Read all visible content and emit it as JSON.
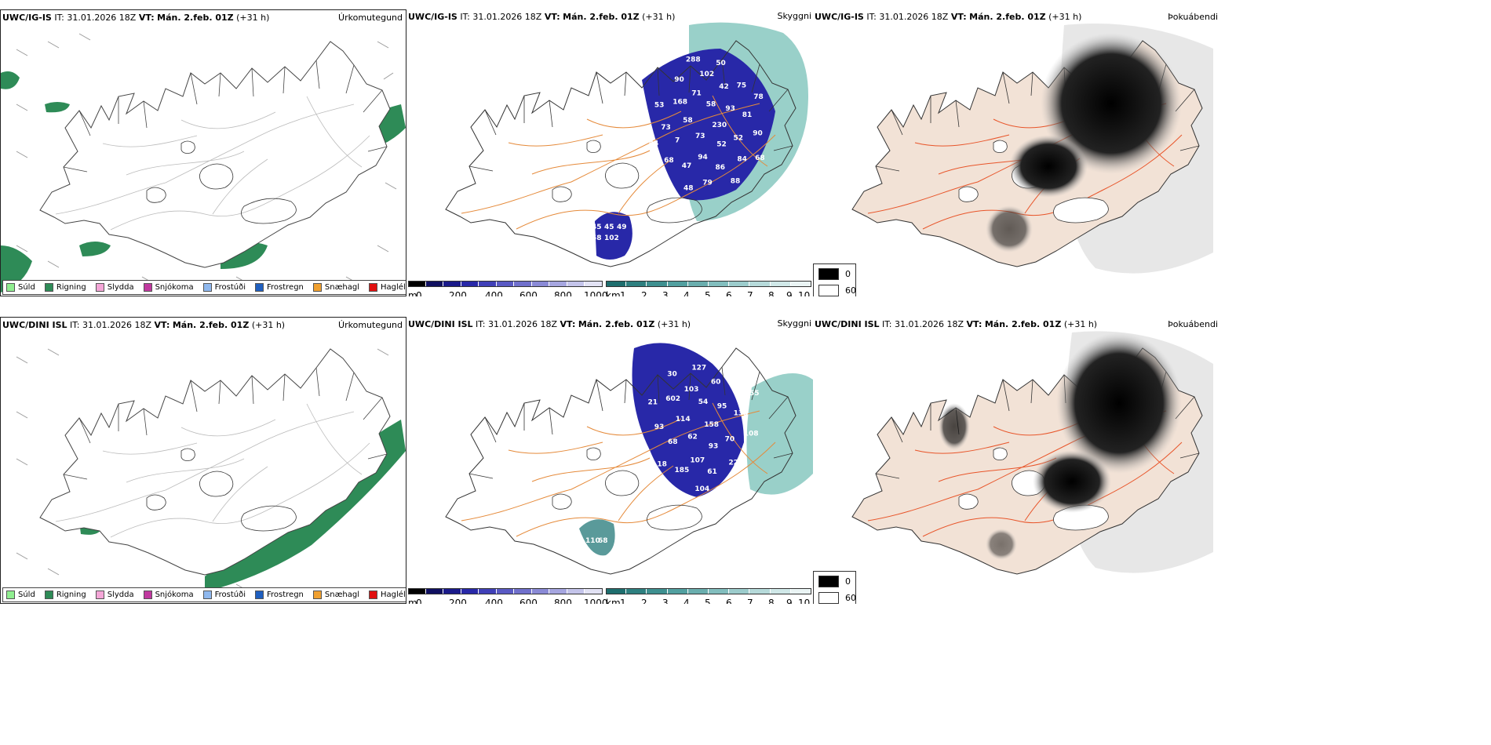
{
  "rows": [
    {
      "model": "UWC/IG-IS",
      "it_label": "IT:",
      "it_value": "31.01.2026 18Z",
      "vt_label": "VT:",
      "vt_value": "Mán. 2.feb. 01Z",
      "lead": "(+31 h)"
    },
    {
      "model": "UWC/DINI ISL",
      "it_label": "IT:",
      "it_value": "31.01.2026 18Z",
      "vt_label": "VT:",
      "vt_value": "Mán. 2.feb. 01Z",
      "lead": "(+31 h)"
    }
  ],
  "panel_names": {
    "precip_type": "Úrkomutegund",
    "visibility": "Skyggni",
    "fog": "Þokuábendi"
  },
  "precip_legend": [
    {
      "label": "Súld",
      "color": "#90ee90"
    },
    {
      "label": "Rigning",
      "color": "#2e8b57"
    },
    {
      "label": "Slydda",
      "color": "#f4a6d7"
    },
    {
      "label": "Snjókoma",
      "color": "#c0399f"
    },
    {
      "label": "Frostúði",
      "color": "#8fb8ee"
    },
    {
      "label": "Frostregn",
      "color": "#1f5fbf"
    },
    {
      "label": "Snæhagl",
      "color": "#f0a030"
    },
    {
      "label": "Haglél",
      "color": "#e01010"
    }
  ],
  "cloud_base_bar": {
    "unit": "m",
    "ticks": [
      "0",
      "200",
      "400",
      "600",
      "800",
      "1000"
    ],
    "colors": [
      "#000000",
      "#101060",
      "#1a1a8a",
      "#2828a8",
      "#4040b8",
      "#5a5ac4",
      "#7070cc",
      "#8a8ad6",
      "#a6a6e0",
      "#c4c4ea",
      "#e2e2f4"
    ]
  },
  "visibility_bar": {
    "unit": "km",
    "ticks": [
      "1",
      "2",
      "3",
      "4",
      "5",
      "6",
      "7",
      "8",
      "9",
      "10"
    ],
    "colors": [
      "#1e6e6e",
      "#2e8080",
      "#3e9090",
      "#52a0a0",
      "#6aaeae",
      "#82bebe",
      "#9ccccc",
      "#b6dada",
      "#d0e8e8",
      "#eaf4f4"
    ]
  },
  "fog_legend": [
    {
      "label": "0",
      "color": "#000000"
    },
    {
      "label": "60",
      "color": "#ffffff"
    }
  ],
  "visibility_labels_top": [
    "230",
    "73",
    "58",
    "52",
    "58",
    "93",
    "94",
    "71",
    "52",
    "7",
    "42",
    "86",
    "168",
    "81",
    "47",
    "102",
    "84",
    "73",
    "75",
    "79",
    "90",
    "90",
    "68",
    "50",
    "88",
    "53",
    "78",
    "48",
    "288",
    "68",
    "44",
    "45",
    "45",
    "49",
    "58",
    "102"
  ],
  "visibility_labels_bottom": [
    "158",
    "62",
    "54",
    "93",
    "114",
    "95",
    "107",
    "103",
    "70",
    "68",
    "60",
    "61",
    "602",
    "135",
    "185",
    "127",
    "22",
    "93",
    "149",
    "104",
    "30",
    "108",
    "18",
    "172",
    "12",
    "21",
    "155",
    "110",
    "68"
  ]
}
